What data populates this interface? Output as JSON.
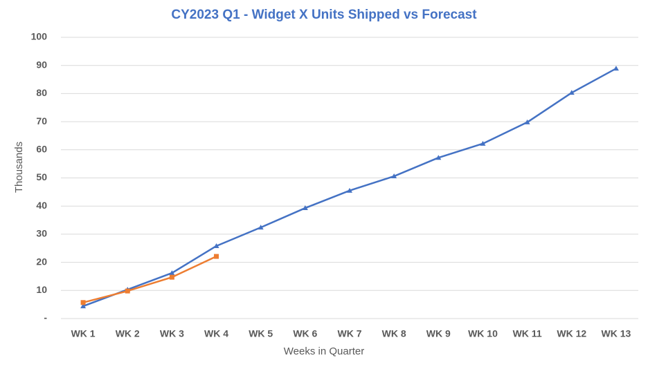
{
  "chart_data": {
    "type": "line",
    "title": "CY2023 Q1 - Widget X Units Shipped vs Forecast",
    "x_label": "Weeks in Quarter",
    "y_label": "Thousands",
    "categories": [
      "WK 1",
      "WK 2",
      "WK 3",
      "WK 4",
      "WK 5",
      "WK 6",
      "WK 7",
      "WK 8",
      "WK 9",
      "WK 10",
      "WK 11",
      "WK 12",
      "WK 13"
    ],
    "series": [
      {
        "color": "#4472c4",
        "marker": "triangle",
        "values": [
          4.4,
          10.3,
          16.2,
          25.8,
          32.4,
          39.3,
          45.5,
          50.6,
          57.2,
          62.2,
          69.8,
          80.3,
          88.9
        ]
      },
      {
        "color": "#ed7d31",
        "marker": "square",
        "values": [
          5.7,
          9.8,
          14.7,
          22.1,
          null,
          null,
          null,
          null,
          null,
          null,
          null,
          null,
          null
        ]
      }
    ],
    "ylim": [
      0,
      100
    ],
    "yticks": [
      {
        "value": 0,
        "label": "-"
      },
      10,
      20,
      30,
      40,
      50,
      60,
      70,
      80,
      90,
      100
    ],
    "grid": true
  }
}
